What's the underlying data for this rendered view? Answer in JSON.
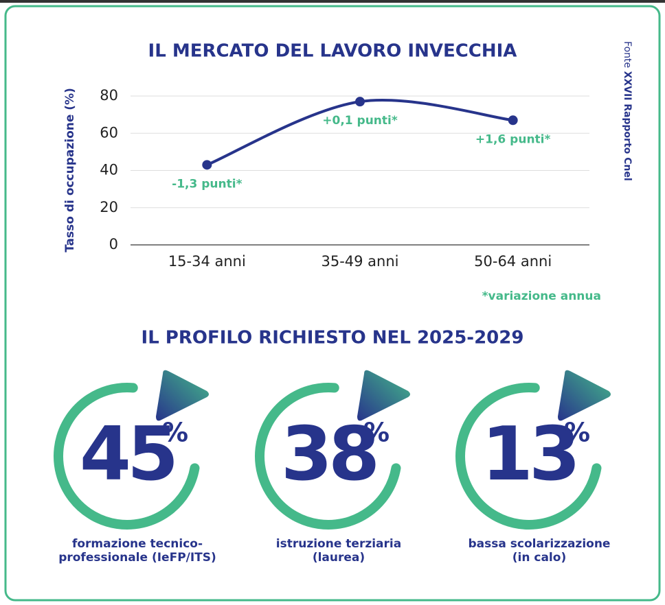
{
  "chart_data": {
    "type": "line",
    "title": "IL MERCATO DEL LAVORO INVECCHIA",
    "ylabel": "Tasso di occupazione (%)",
    "categories": [
      "15-34 anni",
      "35-49 anni",
      "50-64 anni"
    ],
    "values": [
      43,
      77,
      67
    ],
    "color": "#27348b",
    "annotations": [
      "-1,3 punti*",
      "+0,1 punti*",
      "+1,6 punti*"
    ],
    "note": "*variazione annua",
    "ylim": [
      0,
      80
    ],
    "yticks": [
      0,
      20,
      40,
      60,
      80
    ],
    "grid": true
  },
  "source": {
    "label": "Fonte",
    "name": "XXVII Rapporto Cnel"
  },
  "profile": {
    "title": "IL PROFILO RICHIESTO NEL 2025-2029",
    "items": [
      {
        "value": 45,
        "unit": "%",
        "label": [
          "formazione tecnico-",
          "professionale (IeFP/ITS)"
        ]
      },
      {
        "value": 38,
        "unit": "%",
        "label": [
          "istruzione terziaria",
          "(laurea)"
        ]
      },
      {
        "value": 13,
        "unit": "%",
        "label": [
          "bassa scolarizzazione",
          "(in calo)"
        ]
      }
    ]
  }
}
